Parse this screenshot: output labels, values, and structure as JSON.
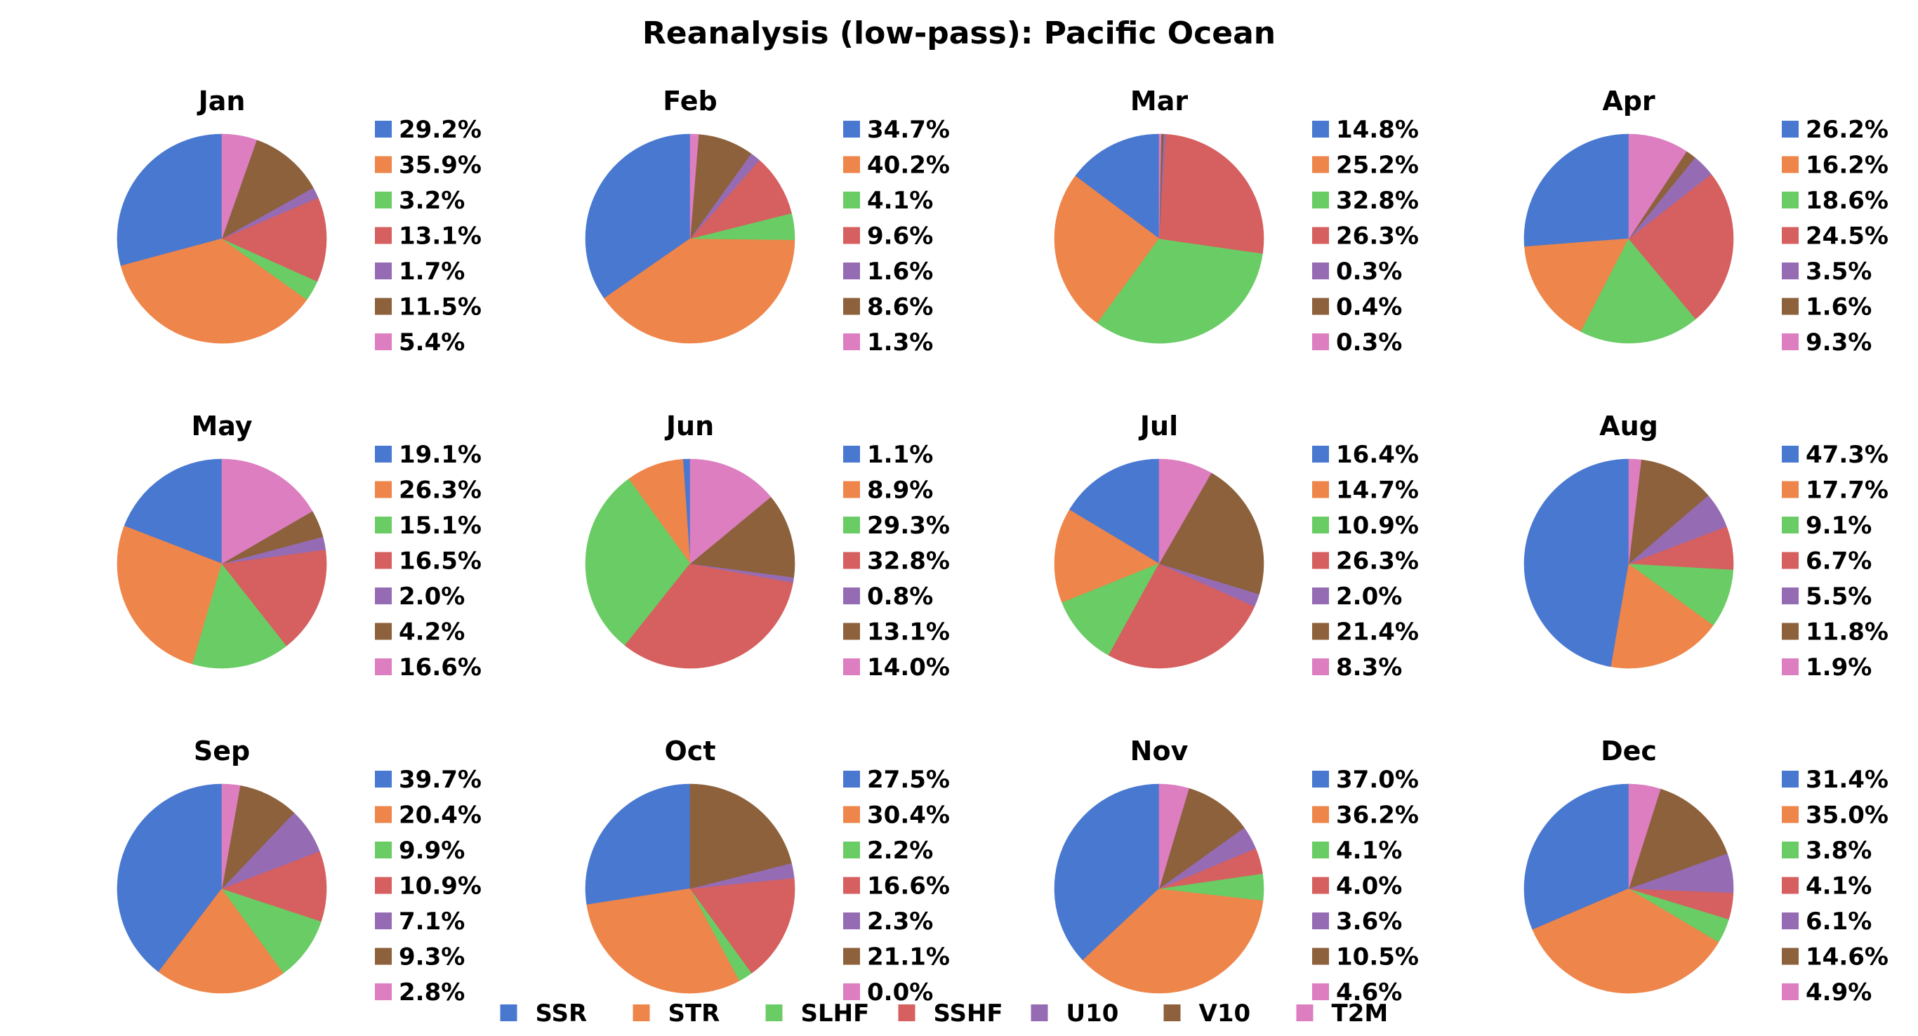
{
  "chart_data": {
    "type": "pie",
    "title": "Reanalysis (low-pass): Pacific Ocean",
    "series_names": [
      "SSR",
      "STR",
      "SLHF",
      "SSHF",
      "U10",
      "V10",
      "T2M"
    ],
    "colors": [
      "#4878d0",
      "#ee854a",
      "#6acc64",
      "#d65f5f",
      "#956cb4",
      "#8c613c",
      "#dc7ec0"
    ],
    "start_angle_deg": 90,
    "direction": "counterclockwise",
    "legend_position": "bottom-center",
    "panels": [
      {
        "title": "Jan",
        "values": [
          29.2,
          35.9,
          3.2,
          13.1,
          1.7,
          11.5,
          5.4
        ],
        "labels": [
          "29.2%",
          "35.9%",
          "3.2%",
          "13.1%",
          "1.7%",
          "11.5%",
          "5.4%"
        ]
      },
      {
        "title": "Feb",
        "values": [
          34.7,
          40.2,
          4.1,
          9.6,
          1.6,
          8.6,
          1.3
        ],
        "labels": [
          "34.7%",
          "40.2%",
          "4.1%",
          "9.6%",
          "1.6%",
          "8.6%",
          "1.3%"
        ]
      },
      {
        "title": "Mar",
        "values": [
          14.8,
          25.2,
          32.8,
          26.3,
          0.3,
          0.4,
          0.3
        ],
        "labels": [
          "14.8%",
          "25.2%",
          "32.8%",
          "26.3%",
          "0.3%",
          "0.4%",
          "0.3%"
        ]
      },
      {
        "title": "Apr",
        "values": [
          26.2,
          16.2,
          18.6,
          24.5,
          3.5,
          1.6,
          9.3
        ],
        "labels": [
          "26.2%",
          "16.2%",
          "18.6%",
          "24.5%",
          "3.5%",
          "1.6%",
          "9.3%"
        ]
      },
      {
        "title": "May",
        "values": [
          19.1,
          26.3,
          15.1,
          16.5,
          2.0,
          4.2,
          16.6
        ],
        "labels": [
          "19.1%",
          "26.3%",
          "15.1%",
          "16.5%",
          "2.0%",
          "4.2%",
          "16.6%"
        ]
      },
      {
        "title": "Jun",
        "values": [
          1.1,
          8.9,
          29.3,
          32.8,
          0.8,
          13.1,
          14.0
        ],
        "labels": [
          "1.1%",
          "8.9%",
          "29.3%",
          "32.8%",
          "0.8%",
          "13.1%",
          "14.0%"
        ]
      },
      {
        "title": "Jul",
        "values": [
          16.4,
          14.7,
          10.9,
          26.3,
          2.0,
          21.4,
          8.3
        ],
        "labels": [
          "16.4%",
          "14.7%",
          "10.9%",
          "26.3%",
          "2.0%",
          "21.4%",
          "8.3%"
        ]
      },
      {
        "title": "Aug",
        "values": [
          47.3,
          17.7,
          9.1,
          6.7,
          5.5,
          11.8,
          1.9
        ],
        "labels": [
          "47.3%",
          "17.7%",
          "9.1%",
          "6.7%",
          "5.5%",
          "11.8%",
          "1.9%"
        ]
      },
      {
        "title": "Sep",
        "values": [
          39.7,
          20.4,
          9.9,
          10.9,
          7.1,
          9.3,
          2.8
        ],
        "labels": [
          "39.7%",
          "20.4%",
          "9.9%",
          "10.9%",
          "7.1%",
          "9.3%",
          "2.8%"
        ]
      },
      {
        "title": "Oct",
        "values": [
          27.5,
          30.4,
          2.2,
          16.6,
          2.3,
          21.1,
          0.0
        ],
        "labels": [
          "27.5%",
          "30.4%",
          "2.2%",
          "16.6%",
          "2.3%",
          "21.1%",
          "0.0%"
        ]
      },
      {
        "title": "Nov",
        "values": [
          37.0,
          36.2,
          4.1,
          4.0,
          3.6,
          10.5,
          4.6
        ],
        "labels": [
          "37.0%",
          "36.2%",
          "4.1%",
          "4.0%",
          "3.6%",
          "10.5%",
          "4.6%"
        ]
      },
      {
        "title": "Dec",
        "values": [
          31.4,
          35.0,
          3.8,
          4.1,
          6.1,
          14.6,
          4.9
        ],
        "labels": [
          "31.4%",
          "35.0%",
          "3.8%",
          "4.1%",
          "6.1%",
          "14.6%",
          "4.9%"
        ]
      }
    ]
  }
}
